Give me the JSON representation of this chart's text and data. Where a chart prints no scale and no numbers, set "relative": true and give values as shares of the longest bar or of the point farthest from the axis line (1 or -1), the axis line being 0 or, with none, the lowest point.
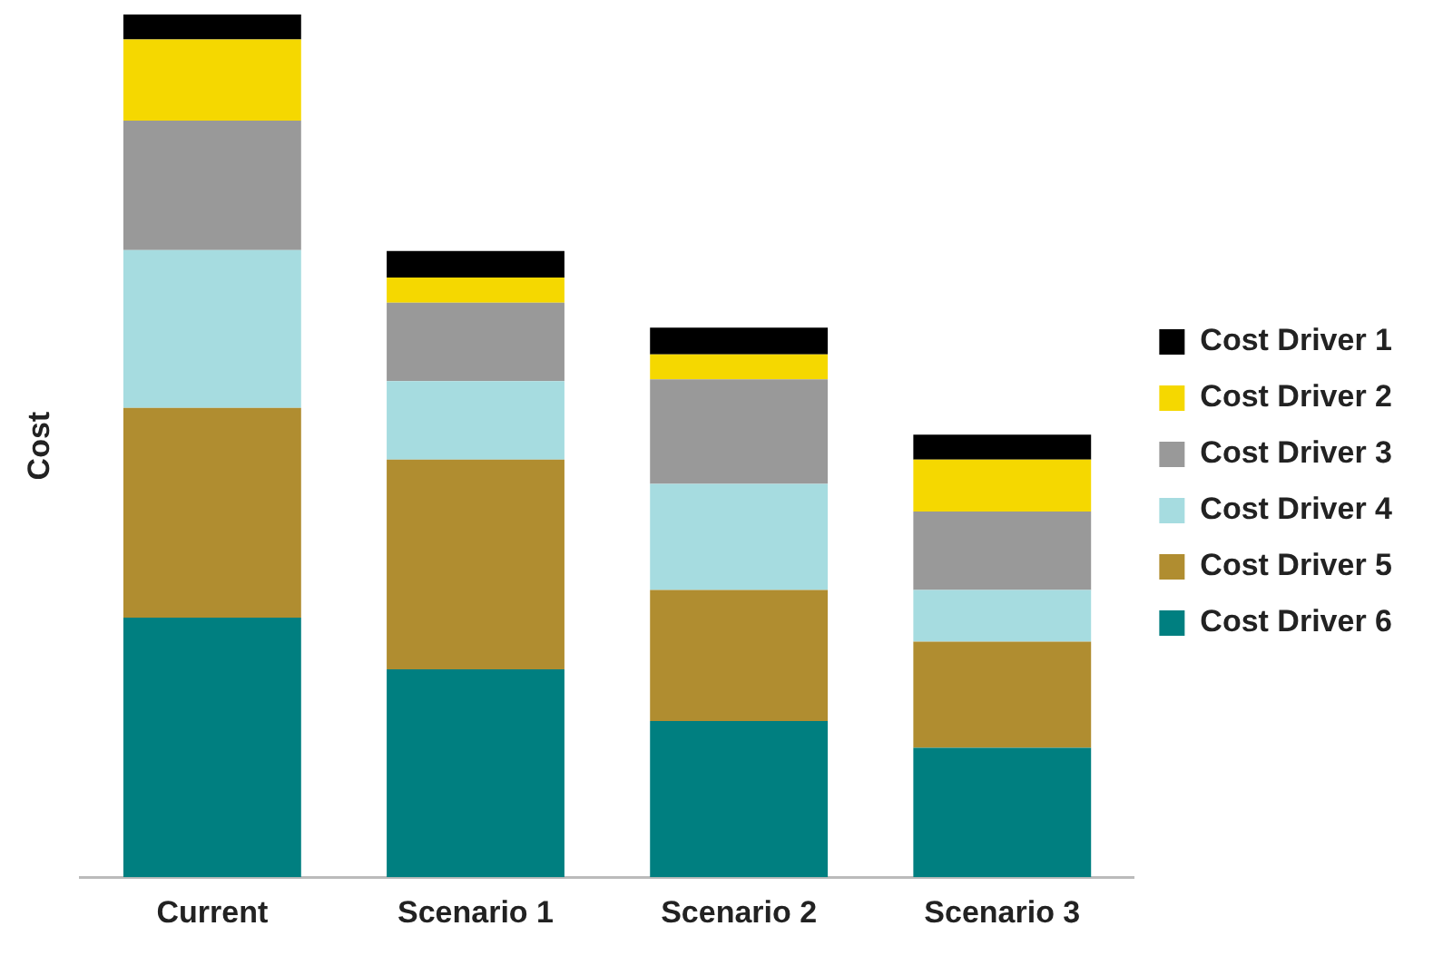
{
  "chart_data": {
    "type": "bar",
    "stacked": true,
    "relative": true,
    "ylabel": "Cost",
    "legend": "right",
    "grid": false,
    "categories": [
      "Current",
      "Scenario 1",
      "Scenario 2",
      "Scenario 3"
    ],
    "series": [
      {
        "name": "Cost Driver 6",
        "color": "#007f80",
        "values": [
          0.301,
          0.241,
          0.181,
          0.15
        ]
      },
      {
        "name": "Cost Driver 5",
        "color": "#b08d30",
        "values": [
          0.243,
          0.243,
          0.152,
          0.123
        ]
      },
      {
        "name": "Cost Driver 4",
        "color": "#a6dce0",
        "values": [
          0.183,
          0.091,
          0.123,
          0.06
        ]
      },
      {
        "name": "Cost Driver 3",
        "color": "#999999",
        "values": [
          0.15,
          0.091,
          0.121,
          0.091
        ]
      },
      {
        "name": "Cost Driver 2",
        "color": "#f5d800",
        "values": [
          0.094,
          0.029,
          0.029,
          0.06
        ]
      },
      {
        "name": "Cost Driver 1",
        "color": "#000000",
        "values": [
          0.029,
          0.031,
          0.031,
          0.029
        ]
      }
    ]
  }
}
